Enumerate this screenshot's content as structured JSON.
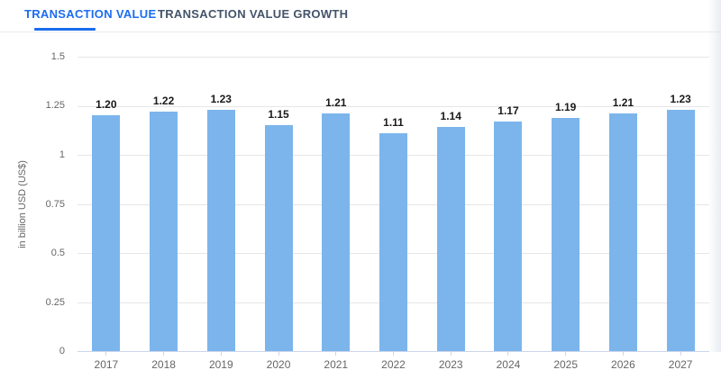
{
  "tabs": [
    {
      "label": "TRANSACTION VALUE",
      "active": true
    },
    {
      "label": "TRANSACTION VALUE GROWTH",
      "active": false
    }
  ],
  "colors": {
    "bar": "#7cb5ec",
    "accent": "#1b6cf0",
    "inactive_tab": "#44546b",
    "grid_line": "#e6e6e6",
    "axis_line": "#ccd6eb",
    "axis_label": "#666666",
    "value_label": "#1a1a1a"
  },
  "chart_data": {
    "type": "bar",
    "title": "",
    "categories": [
      "2017",
      "2018",
      "2019",
      "2020",
      "2021",
      "2022",
      "2023",
      "2024",
      "2025",
      "2026",
      "2027"
    ],
    "values": [
      1.2,
      1.22,
      1.23,
      1.15,
      1.21,
      1.11,
      1.14,
      1.17,
      1.19,
      1.21,
      1.23
    ],
    "value_labels": [
      "1.20",
      "1.22",
      "1.23",
      "1.15",
      "1.21",
      "1.11",
      "1.14",
      "1.17",
      "1.19",
      "1.21",
      "1.23"
    ],
    "xlabel": "",
    "ylabel": "in billion USD (US$)",
    "ylim": [
      0,
      1.5
    ],
    "yticks": [
      0,
      0.25,
      0.5,
      0.75,
      1,
      1.25,
      1.5
    ],
    "ytick_labels": [
      "0",
      "0.25",
      "0.5",
      "0.75",
      "1",
      "1.25",
      "1.5"
    ],
    "grid": true,
    "legend": "none"
  }
}
